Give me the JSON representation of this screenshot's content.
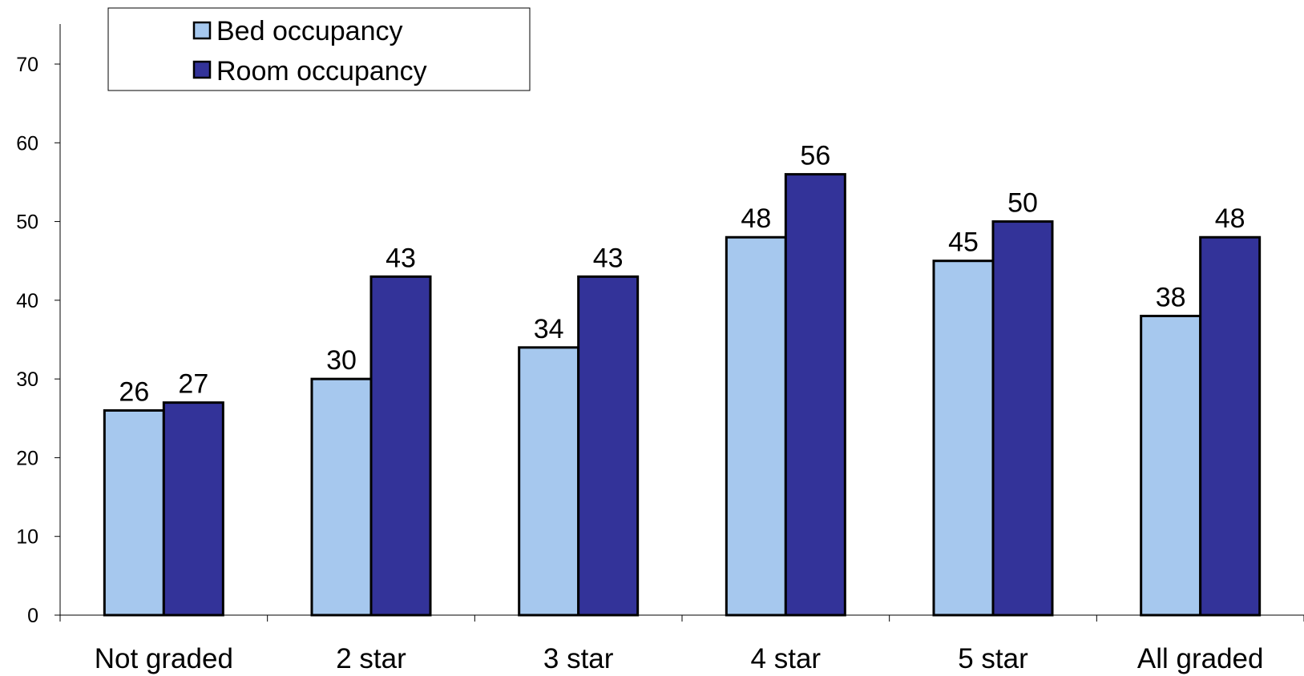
{
  "chart_data": {
    "type": "bar",
    "title": "",
    "xlabel": "",
    "ylabel": "",
    "categories": [
      "Not graded",
      "2 star",
      "3 star",
      "4 star",
      "5 star",
      "All graded"
    ],
    "series": [
      {
        "name": "Bed occupancy",
        "values": [
          26,
          30,
          34,
          48,
          45,
          38
        ],
        "color": "#a6c8ee"
      },
      {
        "name": "Room occupancy",
        "values": [
          27,
          43,
          43,
          56,
          50,
          48
        ],
        "color": "#333399"
      }
    ],
    "ylim": [
      0,
      70
    ],
    "yticks": [
      0,
      10,
      20,
      30,
      40,
      50,
      60,
      70
    ],
    "data_labels": true,
    "grid": false,
    "legend_position": "top-left",
    "bar_outline_color": "#000000"
  }
}
